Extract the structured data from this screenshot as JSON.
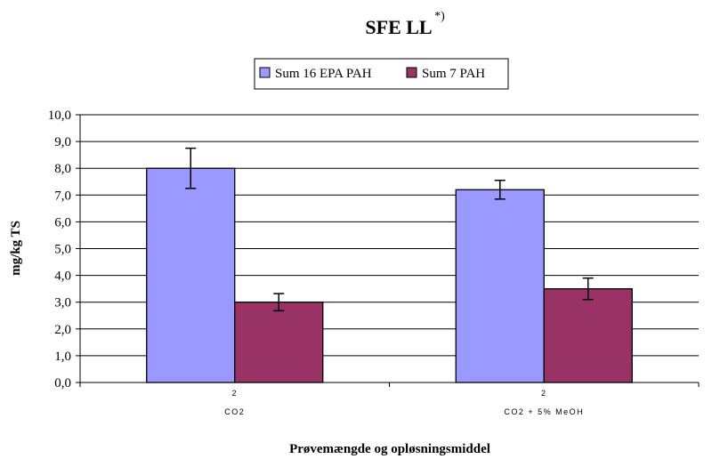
{
  "chart_data": {
    "type": "bar",
    "title": "SFE LL",
    "title_superscript": "*)",
    "xlabel": "Prøvemængde og opløsningsmiddel",
    "ylabel": "mg/kg TS",
    "ylim": [
      0,
      10
    ],
    "yticks": [
      "0,0",
      "1,0",
      "2,0",
      "3,0",
      "4,0",
      "5,0",
      "6,0",
      "7,0",
      "8,0",
      "9,0",
      "10,0"
    ],
    "grid": true,
    "legend_position": "top-center",
    "categories": [
      {
        "top": "2",
        "bottom": "CO2"
      },
      {
        "top": "2",
        "bottom": "CO2 + 5% MeOH"
      }
    ],
    "series": [
      {
        "name": "Sum 16 EPA PAH",
        "color": "#9999ff",
        "values": [
          8.0,
          7.2
        ],
        "error": [
          0.75,
          0.35
        ]
      },
      {
        "name": "Sum 7 PAH",
        "color": "#993366",
        "values": [
          3.0,
          3.5
        ],
        "error": [
          0.32,
          0.4
        ]
      }
    ]
  }
}
